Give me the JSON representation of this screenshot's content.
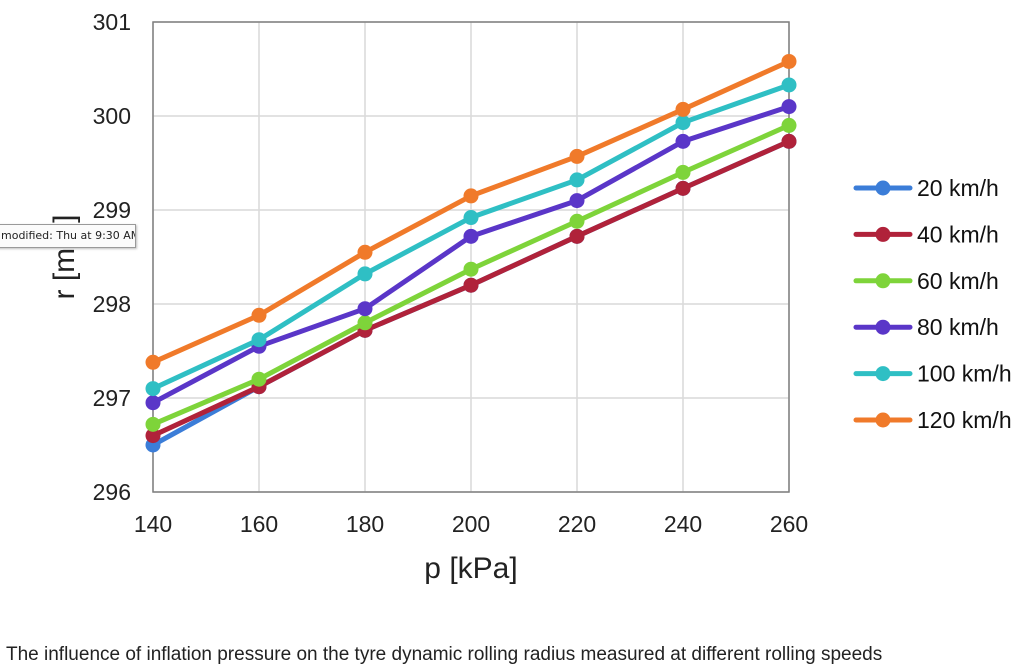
{
  "tooltip": {
    "text": "modified: Thu at 9:30 AM"
  },
  "caption": "The influence of inflation pressure on the tyre dynamic rolling radius measured at different rolling speeds",
  "chart_data": {
    "type": "line",
    "title": "",
    "xlabel": "p [kPa]",
    "ylabel": "r [mm]",
    "x": [
      140,
      160,
      180,
      200,
      220,
      240,
      260
    ],
    "xlim": [
      140,
      260
    ],
    "ylim": [
      296,
      301
    ],
    "x_ticks": [
      "140",
      "160",
      "180",
      "200",
      "220",
      "240",
      "260"
    ],
    "y_ticks": [
      "296",
      "297",
      "298",
      "299",
      "300",
      "301"
    ],
    "grid": true,
    "legend_position": "right",
    "series": [
      {
        "name": "20 km/h",
        "color": "#3b7dd8",
        "values": [
          296.5,
          297.12,
          297.72,
          298.2,
          298.72,
          299.23,
          299.73
        ]
      },
      {
        "name": "40 km/h",
        "color": "#b0223a",
        "values": [
          296.6,
          297.12,
          297.72,
          298.2,
          298.72,
          299.23,
          299.73
        ]
      },
      {
        "name": "60 km/h",
        "color": "#7ed43a",
        "values": [
          296.72,
          297.2,
          297.8,
          298.37,
          298.88,
          299.4,
          299.9
        ]
      },
      {
        "name": "80 km/h",
        "color": "#5a36c8",
        "values": [
          296.95,
          297.55,
          297.95,
          298.72,
          299.1,
          299.73,
          300.1
        ]
      },
      {
        "name": "100 km/h",
        "color": "#2fbfc4",
        "values": [
          297.1,
          297.62,
          298.32,
          298.92,
          299.32,
          299.93,
          300.33
        ]
      },
      {
        "name": "120 km/h",
        "color": "#f07a2a",
        "values": [
          297.38,
          297.88,
          298.55,
          299.15,
          299.57,
          300.07,
          300.58
        ]
      }
    ]
  }
}
